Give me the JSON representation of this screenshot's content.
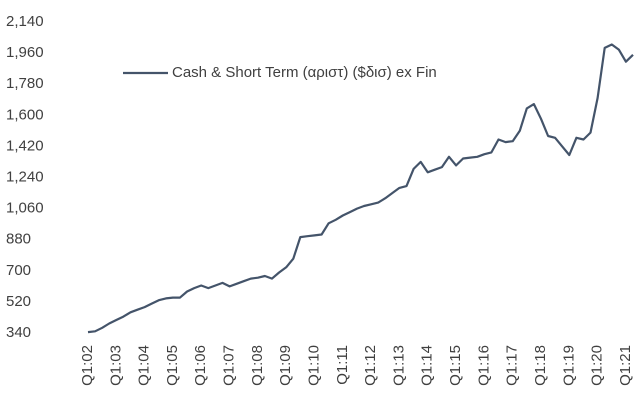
{
  "chart_data": {
    "type": "line",
    "categories": [
      "Q1:02",
      null,
      null,
      null,
      "Q1:03",
      null,
      null,
      null,
      "Q1:04",
      null,
      null,
      null,
      "Q1:05",
      null,
      null,
      null,
      "Q1:06",
      null,
      null,
      null,
      "Q1:07",
      null,
      null,
      null,
      "Q1:08",
      null,
      null,
      null,
      "Q1:09",
      null,
      null,
      null,
      "Q1:10",
      null,
      null,
      null,
      "Q1:11",
      null,
      null,
      null,
      "Q1:12",
      null,
      null,
      null,
      "Q1:13",
      null,
      null,
      null,
      "Q1:14",
      null,
      null,
      null,
      "Q1:15",
      null,
      null,
      null,
      "Q1:16",
      null,
      null,
      null,
      "Q1:17",
      null,
      null,
      null,
      "Q1:18",
      null,
      null,
      null,
      "Q1:19",
      null,
      null,
      null,
      "Q1:20",
      null,
      null,
      null,
      "Q1:21",
      null
    ],
    "series": [
      {
        "name": "Cash & Short Term (αριστ) ($δισ) ex Fin",
        "color": "#44546a",
        "values": [
          345,
          350,
          370,
          395,
          415,
          435,
          460,
          475,
          490,
          510,
          530,
          540,
          545,
          545,
          580,
          600,
          615,
          600,
          615,
          630,
          610,
          625,
          640,
          655,
          660,
          670,
          655,
          690,
          720,
          770,
          895,
          900,
          905,
          910,
          975,
          995,
          1020,
          1040,
          1060,
          1075,
          1085,
          1095,
          1120,
          1150,
          1180,
          1190,
          1290,
          1330,
          1270,
          1285,
          1300,
          1360,
          1310,
          1350,
          1355,
          1360,
          1375,
          1385,
          1460,
          1445,
          1450,
          1510,
          1640,
          1665,
          1580,
          1480,
          1470,
          1420,
          1370,
          1470,
          1460,
          1500,
          1700,
          1990,
          2010,
          1980,
          1910,
          1950
        ]
      }
    ],
    "ylim": [
      340,
      2140
    ],
    "yticks": [
      340,
      520,
      700,
      880,
      {
        "value": 1060,
        "label": "1,060"
      },
      {
        "value": 1240,
        "label": "1,240"
      },
      {
        "value": 1420,
        "label": "1,420"
      },
      {
        "value": 1600,
        "label": "1,600"
      },
      {
        "value": 1780,
        "label": "1,780"
      },
      {
        "value": 1960,
        "label": "1,960"
      },
      {
        "value": 2140,
        "label": "2,140"
      }
    ],
    "legend": "top-left"
  }
}
